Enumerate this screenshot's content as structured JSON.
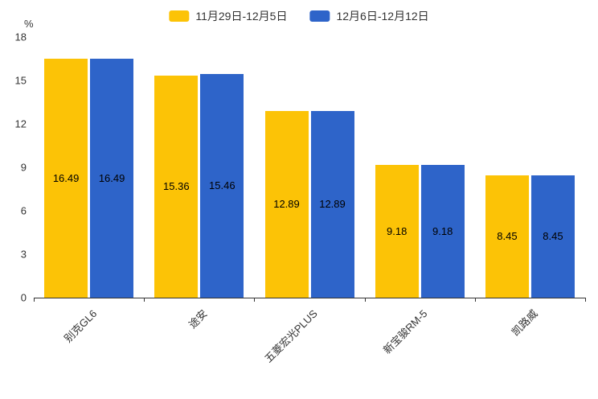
{
  "legend": {
    "items": [
      {
        "label": "11月29日-12月5日",
        "color": "#FCC306"
      },
      {
        "label": "12月6日-12月12日",
        "color": "#2E64C9"
      }
    ]
  },
  "axis": {
    "unit_label": "%"
  },
  "chart_data": {
    "type": "bar",
    "title": "",
    "categories": [
      "别克GL6",
      "途安",
      "五菱宏光PLUS",
      "新宝骏RM-5",
      "凯路威"
    ],
    "series": [
      {
        "name": "11月29日-12月5日",
        "color": "#FCC306",
        "values": [
          16.49,
          15.36,
          12.89,
          9.18,
          8.45
        ]
      },
      {
        "name": "12月6日-12月12日",
        "color": "#2E64C9",
        "values": [
          16.49,
          15.46,
          12.89,
          9.18,
          8.45
        ]
      }
    ],
    "xlabel": "",
    "ylabel": "%",
    "ylim": [
      0,
      18
    ],
    "yticks": [
      0,
      3,
      6,
      9,
      12,
      15,
      18
    ],
    "grid": false,
    "legend_position": "top",
    "value_labels": "inside-center",
    "x_label_rotation": -45
  }
}
